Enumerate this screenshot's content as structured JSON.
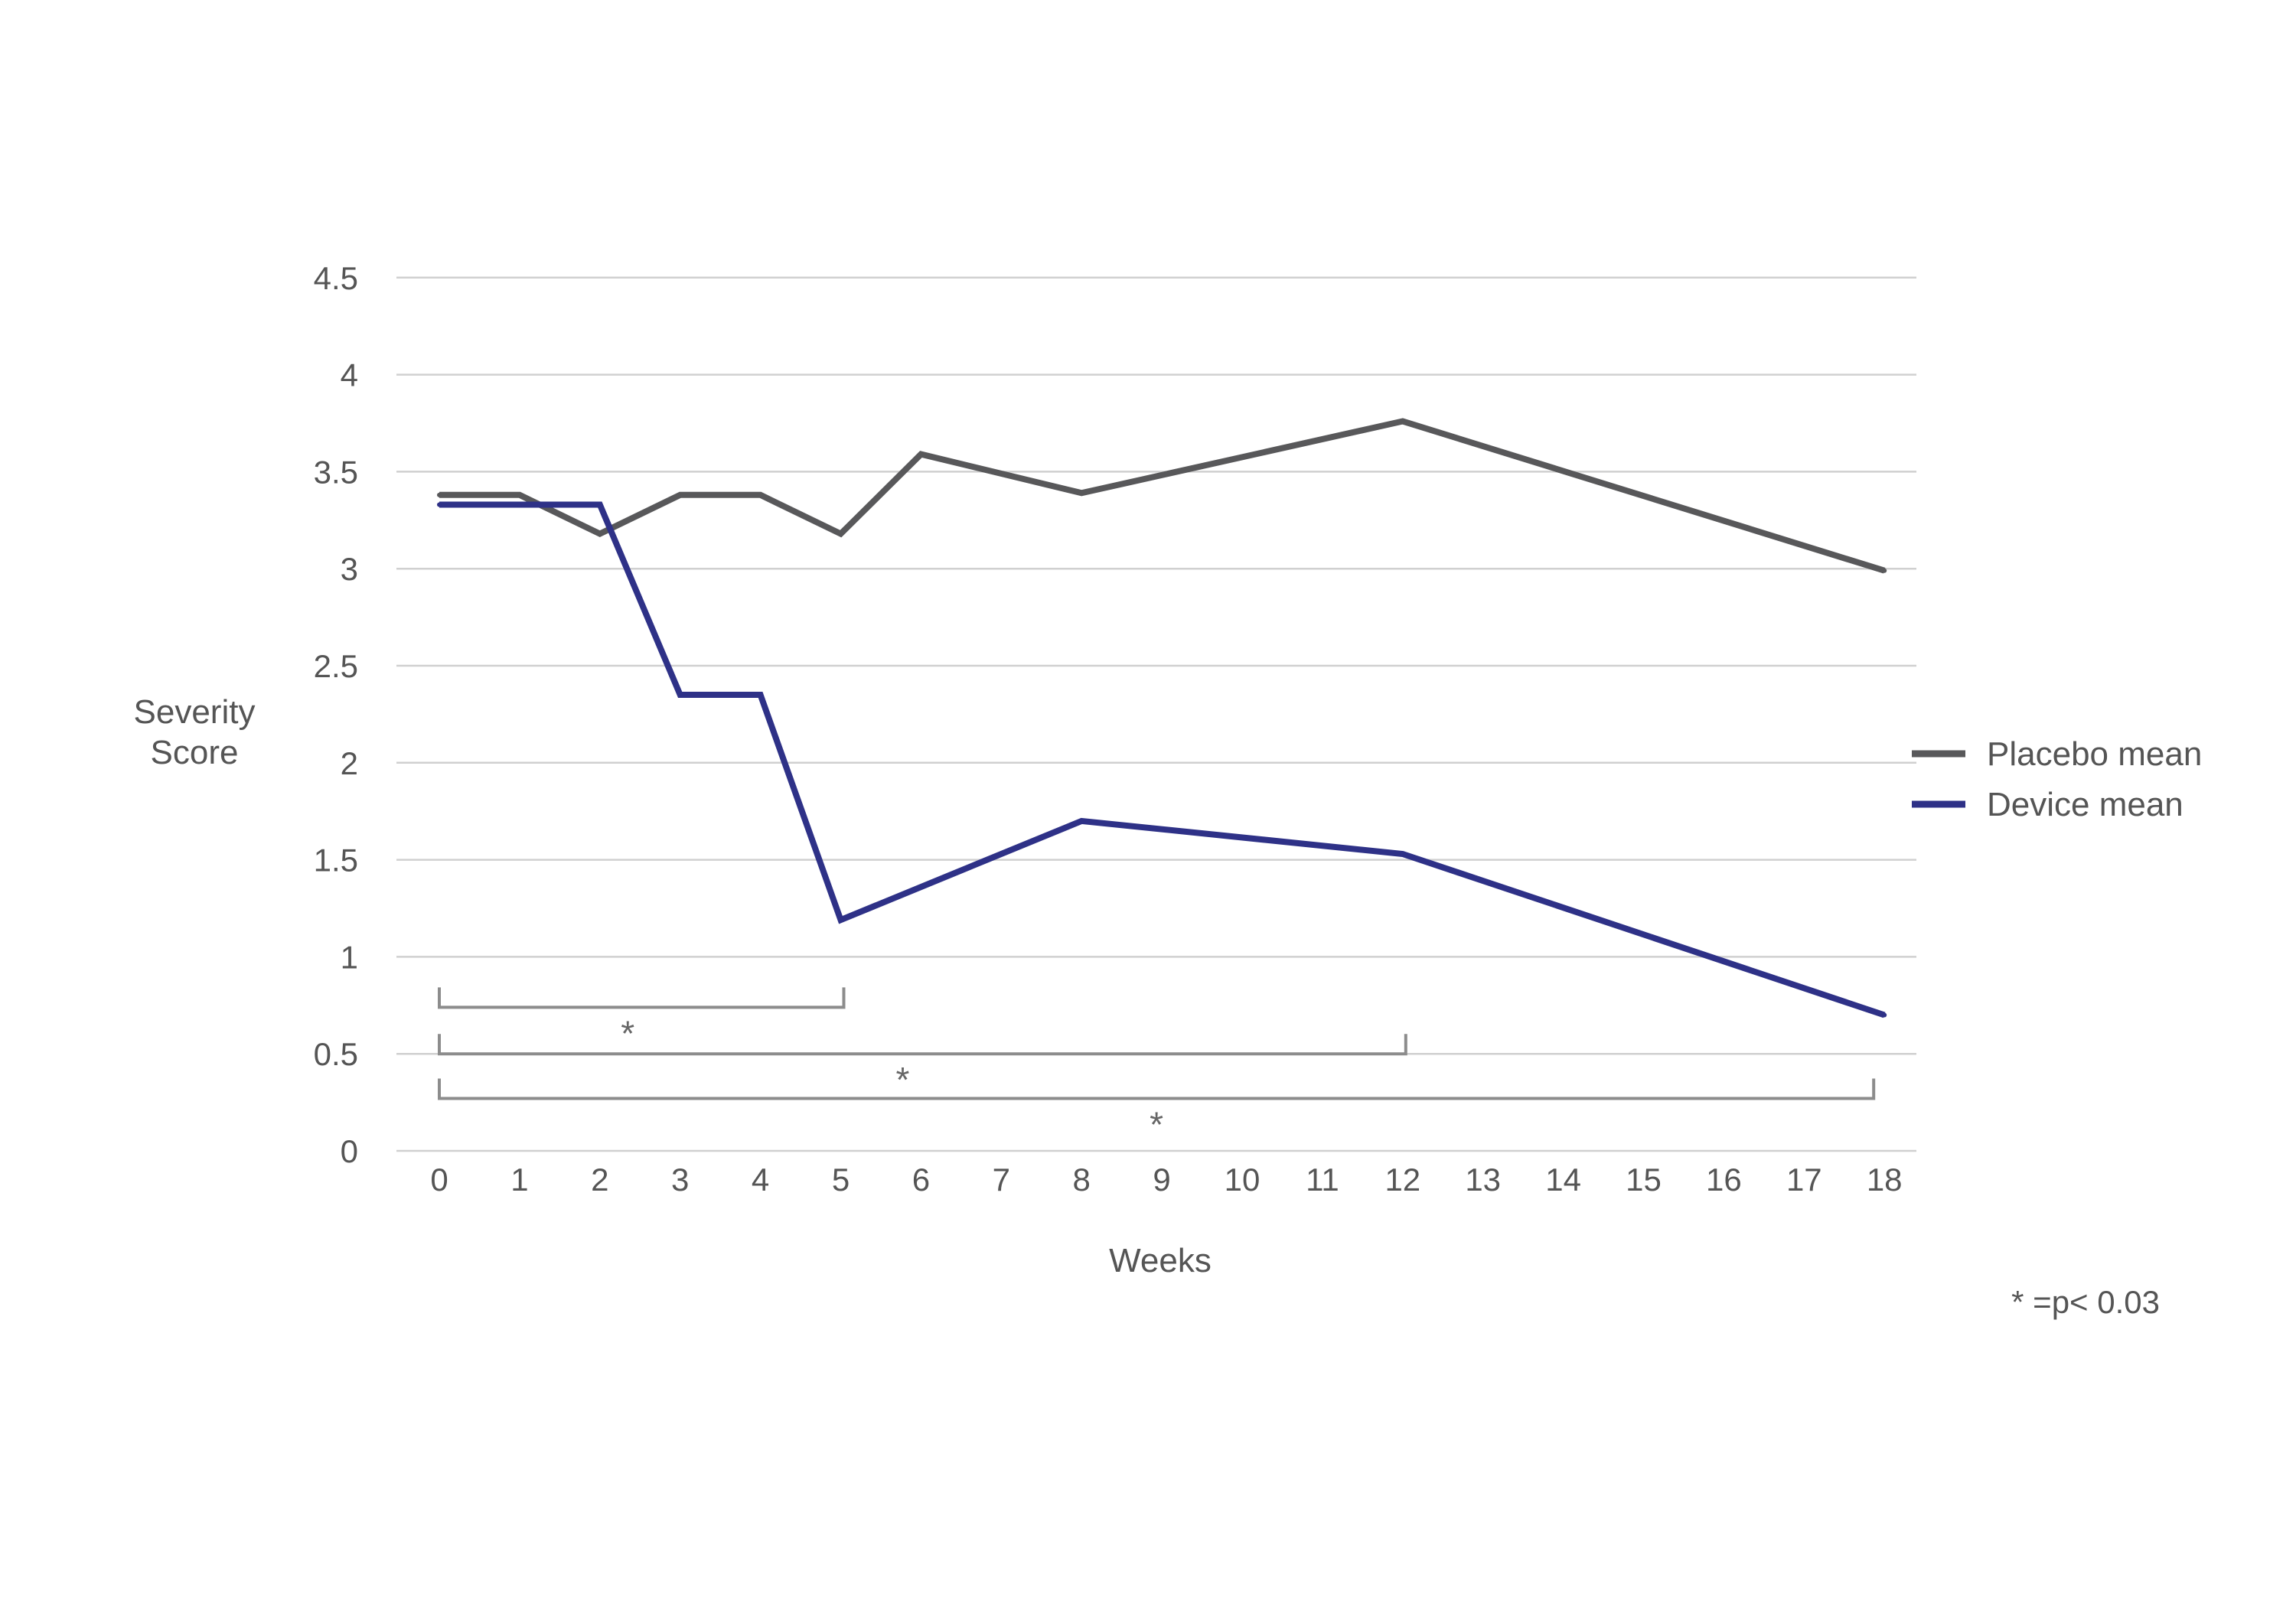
{
  "chart_data": {
    "type": "line",
    "x_ticks": [
      0,
      1,
      2,
      3,
      4,
      5,
      6,
      7,
      8,
      9,
      10,
      11,
      12,
      13,
      14,
      15,
      16,
      17,
      18
    ],
    "y_ticks": [
      0,
      0.5,
      1,
      1.5,
      2,
      2.5,
      3,
      3.5,
      4,
      4.5
    ],
    "y_tick_labels": [
      "0",
      "0.5",
      "1",
      "1.5",
      "2",
      "2.5",
      "3",
      "3.5",
      "4",
      "4.5"
    ],
    "ylim": [
      0,
      4.5
    ],
    "xlim": [
      0,
      18
    ],
    "xlabel": "Weeks",
    "ylabel_lines": [
      "Severity",
      "Score"
    ],
    "grid": true,
    "legend_position": "right",
    "series": [
      {
        "name": "Placebo mean",
        "color": "#58585a",
        "x": [
          0,
          1,
          2,
          3,
          4,
          5,
          6,
          8,
          12,
          18
        ],
        "y": [
          3.38,
          3.38,
          3.18,
          3.38,
          3.38,
          3.18,
          3.59,
          3.39,
          3.76,
          2.99
        ]
      },
      {
        "name": "Device mean",
        "color": "#2e3187",
        "x": [
          0,
          1,
          2,
          3,
          4,
          5,
          8,
          12,
          18
        ],
        "y": [
          3.33,
          3.33,
          3.33,
          2.35,
          2.35,
          1.19,
          1.7,
          1.53,
          0.7
        ]
      }
    ],
    "significance_brackets": [
      {
        "from": 0,
        "to": 5,
        "level": 0.74,
        "label": "*"
      },
      {
        "from": 0,
        "to": 12,
        "level": 0.5,
        "label": "*"
      },
      {
        "from": 0,
        "to": 18,
        "level": 0.27,
        "label": "*"
      }
    ],
    "annotation": "* =p< 0.03",
    "colors": {
      "grid": "#d0d0d0",
      "bracket": "#8c8c8c",
      "text": "#555555"
    }
  }
}
